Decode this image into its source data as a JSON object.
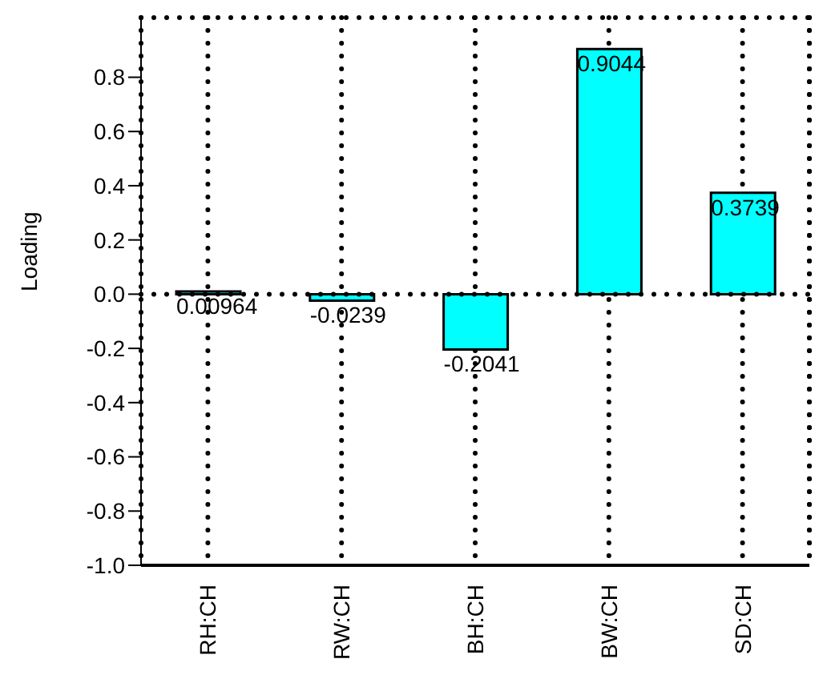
{
  "chart_data": {
    "type": "bar",
    "ylabel": "Loading",
    "categories": [
      "RH:CH",
      "RW:CH",
      "BH:CH",
      "BW:CH",
      "SD:CH"
    ],
    "values": [
      0.00964,
      -0.0239,
      -0.2041,
      0.9044,
      0.3739
    ],
    "color": "#00ffff",
    "data_labels": true,
    "ylim": [
      -1.0,
      1.02
    ],
    "yticks": [
      {
        "value": -1,
        "label": "-1.0"
      },
      {
        "value": -0.8,
        "label": "-0.8"
      },
      {
        "value": -0.6,
        "label": "-0.6"
      },
      {
        "value": -0.4,
        "label": "-0.4"
      },
      {
        "value": -0.2,
        "label": "-0.2"
      },
      {
        "value": 0,
        "label": "0.0"
      },
      0.2,
      0.4,
      0.6,
      0.8
    ],
    "grid": "x",
    "ref_lines": [
      {
        "axis": "y",
        "value": 0,
        "line_style": "dotted"
      }
    ]
  }
}
